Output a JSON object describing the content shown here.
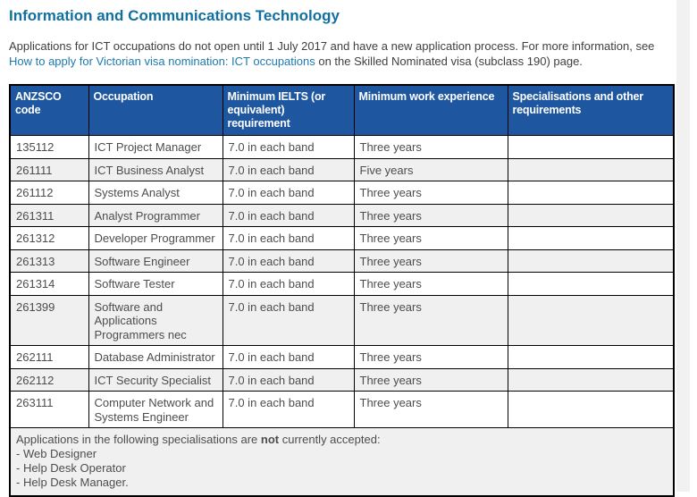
{
  "page": {
    "title": "Information and Communications Technology"
  },
  "intro": {
    "text_before": "Applications for ICT occupations do not open until 1 July 2017 and have a new application process. For more information, see ",
    "link_text": "How to apply for Victorian visa nomination: ICT occupations",
    "text_after": " on the Skilled Nominated visa (subclass 190) page."
  },
  "table": {
    "headers": [
      "ANZSCO code",
      "Occupation",
      "Minimum IELTS (or equivalent) requirement",
      "Minimum work experience",
      "Specialisations and other requirements"
    ],
    "rows": [
      {
        "code": "135112",
        "occupation": "ICT Project Manager",
        "ielts": "7.0 in each band",
        "experience": "Three years",
        "specialisations": ""
      },
      {
        "code": "261111",
        "occupation": "ICT Business Analyst",
        "ielts": "7.0 in each band",
        "experience": "Five years",
        "specialisations": ""
      },
      {
        "code": "261112",
        "occupation": "Systems Analyst",
        "ielts": "7.0 in each band",
        "experience": "Three years",
        "specialisations": ""
      },
      {
        "code": "261311",
        "occupation": "Analyst Programmer",
        "ielts": "7.0 in each band",
        "experience": "Three years",
        "specialisations": ""
      },
      {
        "code": "261312",
        "occupation": "Developer Programmer",
        "ielts": "7.0 in each band",
        "experience": "Three years",
        "specialisations": ""
      },
      {
        "code": "261313",
        "occupation": "Software Engineer",
        "ielts": "7.0 in each band",
        "experience": "Three years",
        "specialisations": ""
      },
      {
        "code": "261314",
        "occupation": "Software Tester",
        "ielts": "7.0 in each band",
        "experience": "Three years",
        "specialisations": ""
      },
      {
        "code": "261399",
        "occupation": "Software and Applications Programmers nec",
        "ielts": "7.0 in each band",
        "experience": "Three years",
        "specialisations": ""
      },
      {
        "code": "262111",
        "occupation": "Database Administrator",
        "ielts": "7.0 in each band",
        "experience": "Three years",
        "specialisations": ""
      },
      {
        "code": "262112",
        "occupation": "ICT Security Specialist",
        "ielts": "7.0 in each band",
        "experience": "Three years",
        "specialisations": ""
      },
      {
        "code": "263111",
        "occupation": "Computer Network and Systems Engineer",
        "ielts": "7.0 in each band",
        "experience": "Three years",
        "specialisations": ""
      }
    ],
    "footer": {
      "prefix": "Applications in the following specialisations are ",
      "emphasis": "not",
      "suffix": " currently accepted:",
      "items": [
        "- Web Designer",
        "- Help Desk Operator",
        "- Help Desk Manager."
      ]
    }
  },
  "colors": {
    "header_bg": "#1e56a0",
    "row_stripe": "#f0f0f0",
    "title": "#11709f",
    "link": "#1d7ab0",
    "border": "#000000",
    "body_text": "#3f3f3f",
    "table_text": "#4d4d4d"
  }
}
